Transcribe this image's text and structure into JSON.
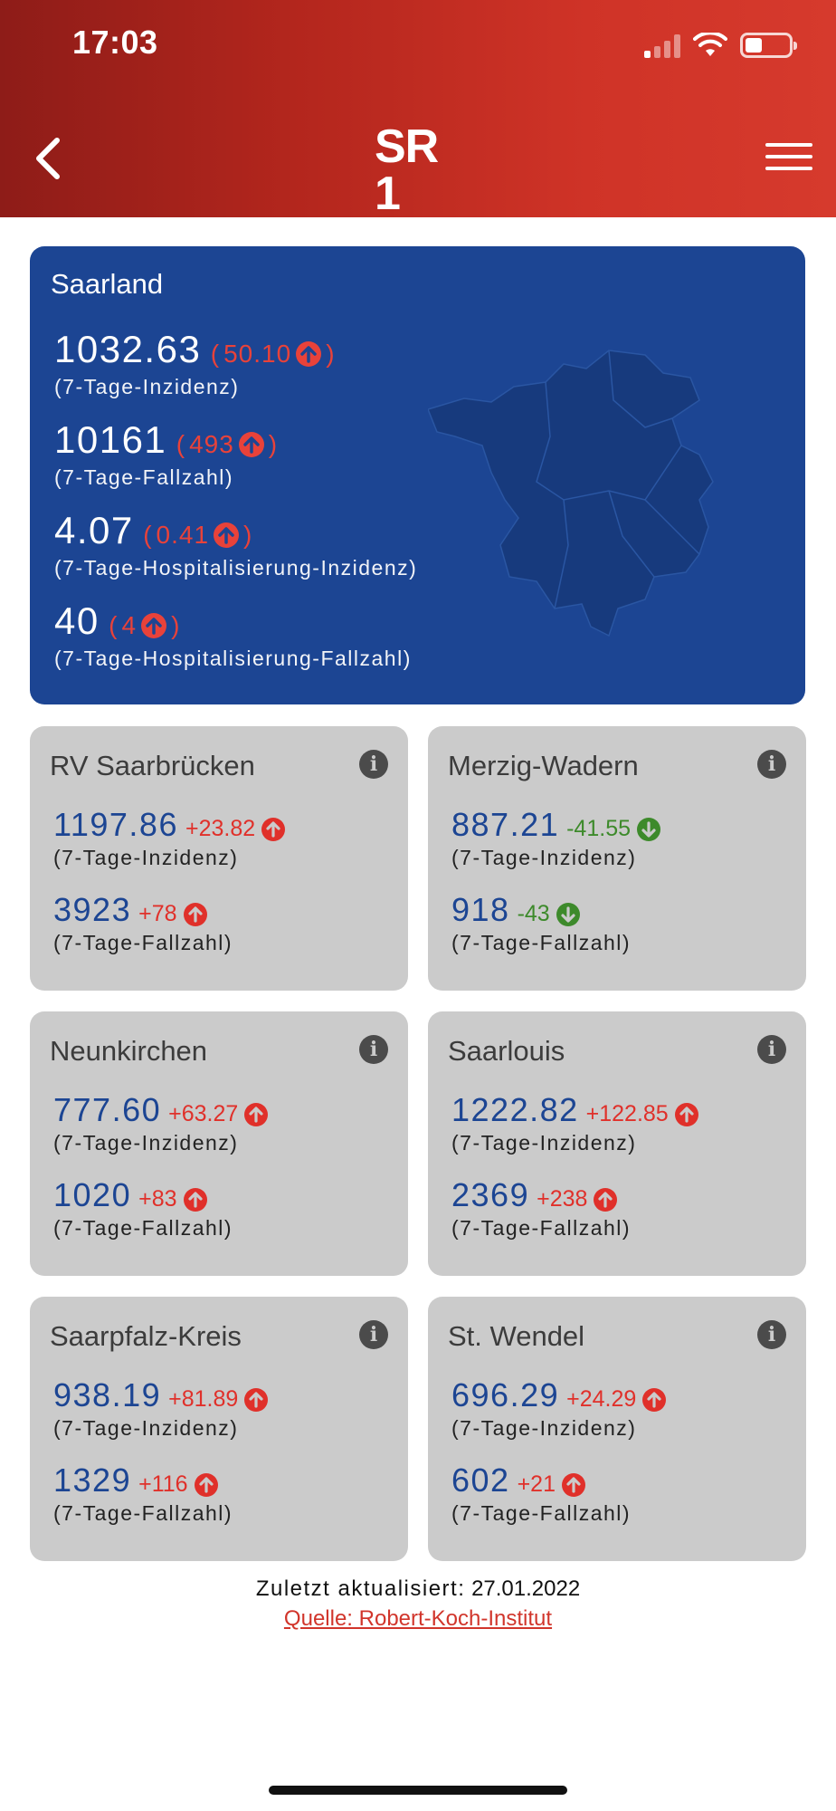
{
  "status_bar": {
    "time": "17:03"
  },
  "header": {
    "logo": "SR 1"
  },
  "saarland": {
    "title": "Saarland",
    "metrics": [
      {
        "value": "1032.63",
        "delta": "50.10",
        "trend": "up",
        "label": "(7-Tage-Inzidenz)"
      },
      {
        "value": "10161",
        "delta": "493",
        "trend": "up",
        "label": "(7-Tage-Fallzahl)"
      },
      {
        "value": "4.07",
        "delta": "0.41",
        "trend": "up",
        "label": "(7-Tage-Hospitalisierung-Inzidenz)"
      },
      {
        "value": "40",
        "delta": "4",
        "trend": "up",
        "label": "(7-Tage-Hospitalisierung-Fallzahl)"
      }
    ]
  },
  "districts": [
    {
      "name": "RV Saarbrücken",
      "inzidenz": "1197.86",
      "inzidenz_delta": "+23.82",
      "inzidenz_trend": "up",
      "inzidenz_label": "(7-Tage-Inzidenz)",
      "fallzahl": "3923",
      "fallzahl_delta": "+78",
      "fallzahl_trend": "up",
      "fallzahl_label": "(7-Tage-Fallzahl)"
    },
    {
      "name": "Merzig-Wadern",
      "inzidenz": "887.21",
      "inzidenz_delta": "-41.55",
      "inzidenz_trend": "down",
      "inzidenz_label": "(7-Tage-Inzidenz)",
      "fallzahl": "918",
      "fallzahl_delta": "-43",
      "fallzahl_trend": "down",
      "fallzahl_label": "(7-Tage-Fallzahl)"
    },
    {
      "name": "Neunkirchen",
      "inzidenz": "777.60",
      "inzidenz_delta": "+63.27",
      "inzidenz_trend": "up",
      "inzidenz_label": "(7-Tage-Inzidenz)",
      "fallzahl": "1020",
      "fallzahl_delta": "+83",
      "fallzahl_trend": "up",
      "fallzahl_label": "(7-Tage-Fallzahl)"
    },
    {
      "name": "Saarlouis",
      "inzidenz": "1222.82",
      "inzidenz_delta": "+122.85",
      "inzidenz_trend": "up",
      "inzidenz_label": "(7-Tage-Inzidenz)",
      "fallzahl": "2369",
      "fallzahl_delta": "+238",
      "fallzahl_trend": "up",
      "fallzahl_label": "(7-Tage-Fallzahl)"
    },
    {
      "name": "Saarpfalz-Kreis",
      "inzidenz": "938.19",
      "inzidenz_delta": "+81.89",
      "inzidenz_trend": "up",
      "inzidenz_label": "(7-Tage-Inzidenz)",
      "fallzahl": "1329",
      "fallzahl_delta": "+116",
      "fallzahl_trend": "up",
      "fallzahl_label": "(7-Tage-Fallzahl)"
    },
    {
      "name": "St. Wendel",
      "inzidenz": "696.29",
      "inzidenz_delta": "+24.29",
      "inzidenz_trend": "up",
      "inzidenz_label": "(7-Tage-Inzidenz)",
      "fallzahl": "602",
      "fallzahl_delta": "+21",
      "fallzahl_trend": "up",
      "fallzahl_label": "(7-Tage-Fallzahl)"
    }
  ],
  "footer": {
    "updated_label": "Zuletzt aktualisiert:",
    "updated_date": "27.01.2022",
    "source_link": "Quelle: Robert-Koch-Institut"
  },
  "colors": {
    "header_red": "#d63a2d",
    "card_blue": "#1c4593",
    "up_red": "#e0302a",
    "down_green": "#3d8a2b",
    "card_grey": "#cbcbcb"
  }
}
